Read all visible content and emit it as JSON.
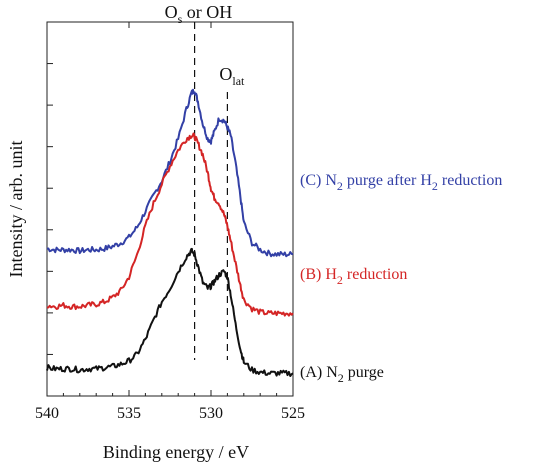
{
  "chart_data": {
    "type": "line",
    "title": "",
    "xlabel": "Binding energy / eV",
    "ylabel": "Intensity / arb. unit",
    "xlim": [
      540,
      525
    ],
    "x_reversed": true,
    "x_ticks": [
      "540",
      "535",
      "530",
      "525"
    ],
    "y_tick_labels_shown": false,
    "y_ticks": 8,
    "grid": false,
    "legend": "none",
    "annotations": [
      {
        "name": "os-oh",
        "main": "O",
        "sub": "s",
        "rest": " or OH",
        "x": 531.0
      },
      {
        "name": "olat",
        "main": "O",
        "sub": "lat",
        "rest": "",
        "x": 529.0
      }
    ],
    "x": [
      540.0,
      539.5,
      539.0,
      538.5,
      538.0,
      537.5,
      537.0,
      536.5,
      536.0,
      535.5,
      535.0,
      534.5,
      534.0,
      533.5,
      533.0,
      532.5,
      532.0,
      531.5,
      531.2,
      531.0,
      530.8,
      530.5,
      530.2,
      530.0,
      529.8,
      529.5,
      529.2,
      529.0,
      528.8,
      528.5,
      528.2,
      528.0,
      527.5,
      527.0,
      526.5,
      526.0,
      525.5,
      525.0
    ],
    "series": [
      {
        "name": "(C) N2 purge after H2 reduction",
        "label_parts": [
          "(C) N",
          "2",
          " purge after H",
          "2",
          " reduction"
        ],
        "color": "#3340a6",
        "values": [
          0.75,
          0.74,
          0.74,
          0.74,
          0.73,
          0.74,
          0.74,
          0.75,
          0.77,
          0.8,
          0.85,
          0.94,
          1.08,
          1.22,
          1.35,
          1.52,
          1.72,
          1.98,
          2.12,
          2.15,
          2.05,
          1.85,
          1.72,
          1.7,
          1.78,
          1.9,
          1.88,
          1.82,
          1.75,
          1.5,
          1.2,
          0.98,
          0.8,
          0.74,
          0.71,
          0.7,
          0.7,
          0.7
        ]
      },
      {
        "name": "(B) H2 reduction",
        "label_parts": [
          "(B) H",
          "2",
          " reduction"
        ],
        "color": "#d42525",
        "values": [
          0.25,
          0.24,
          0.25,
          0.24,
          0.24,
          0.25,
          0.26,
          0.28,
          0.32,
          0.38,
          0.5,
          0.7,
          0.95,
          1.15,
          1.32,
          1.48,
          1.62,
          1.72,
          1.75,
          1.74,
          1.68,
          1.58,
          1.42,
          1.28,
          1.2,
          1.15,
          1.05,
          0.95,
          0.82,
          0.62,
          0.42,
          0.3,
          0.22,
          0.19,
          0.18,
          0.18,
          0.18,
          0.18
        ]
      },
      {
        "name": "(A) N2 purge",
        "label_parts": [
          "(A) N",
          "2",
          " purge"
        ],
        "color": "#111111",
        "values": [
          -0.3,
          -0.31,
          -0.31,
          -0.31,
          -0.32,
          -0.31,
          -0.31,
          -0.3,
          -0.29,
          -0.27,
          -0.24,
          -0.18,
          -0.05,
          0.12,
          0.28,
          0.4,
          0.55,
          0.68,
          0.73,
          0.7,
          0.6,
          0.45,
          0.4,
          0.42,
          0.46,
          0.52,
          0.55,
          0.5,
          0.35,
          0.08,
          -0.14,
          -0.25,
          -0.32,
          -0.34,
          -0.35,
          -0.35,
          -0.35,
          -0.35
        ]
      }
    ]
  }
}
